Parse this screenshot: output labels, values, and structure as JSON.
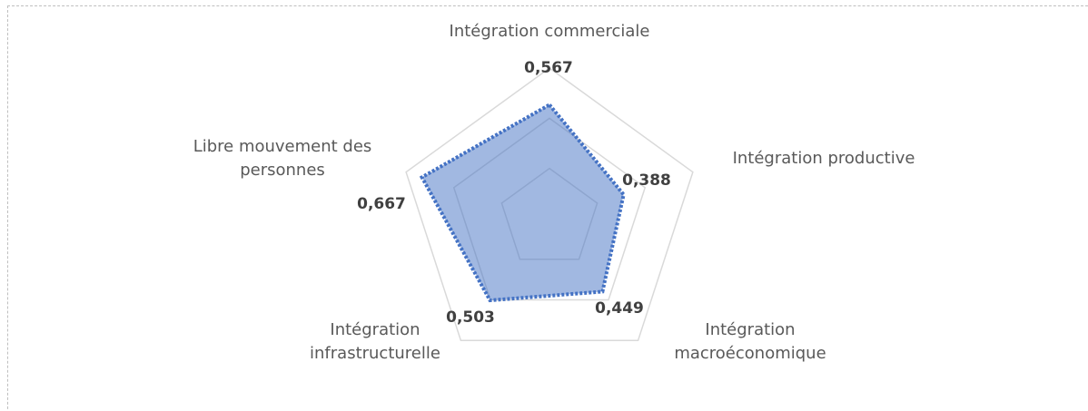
{
  "chart_data": {
    "type": "radar",
    "categories": [
      "Intégration commerciale",
      "Intégration productive",
      "Intégration macroéconomique",
      "Intégration infrastructurelle",
      "Libre mouvement des personnes"
    ],
    "values": [
      0.567,
      0.388,
      0.449,
      0.503,
      0.667
    ],
    "value_labels": [
      "0,567",
      "0,388",
      "0,449",
      "0,503",
      "0,667"
    ],
    "color": "#4472c4",
    "ylim": [
      0,
      0.75
    ],
    "yticks": [
      0.25,
      0.5,
      0.75
    ],
    "grid": true
  }
}
